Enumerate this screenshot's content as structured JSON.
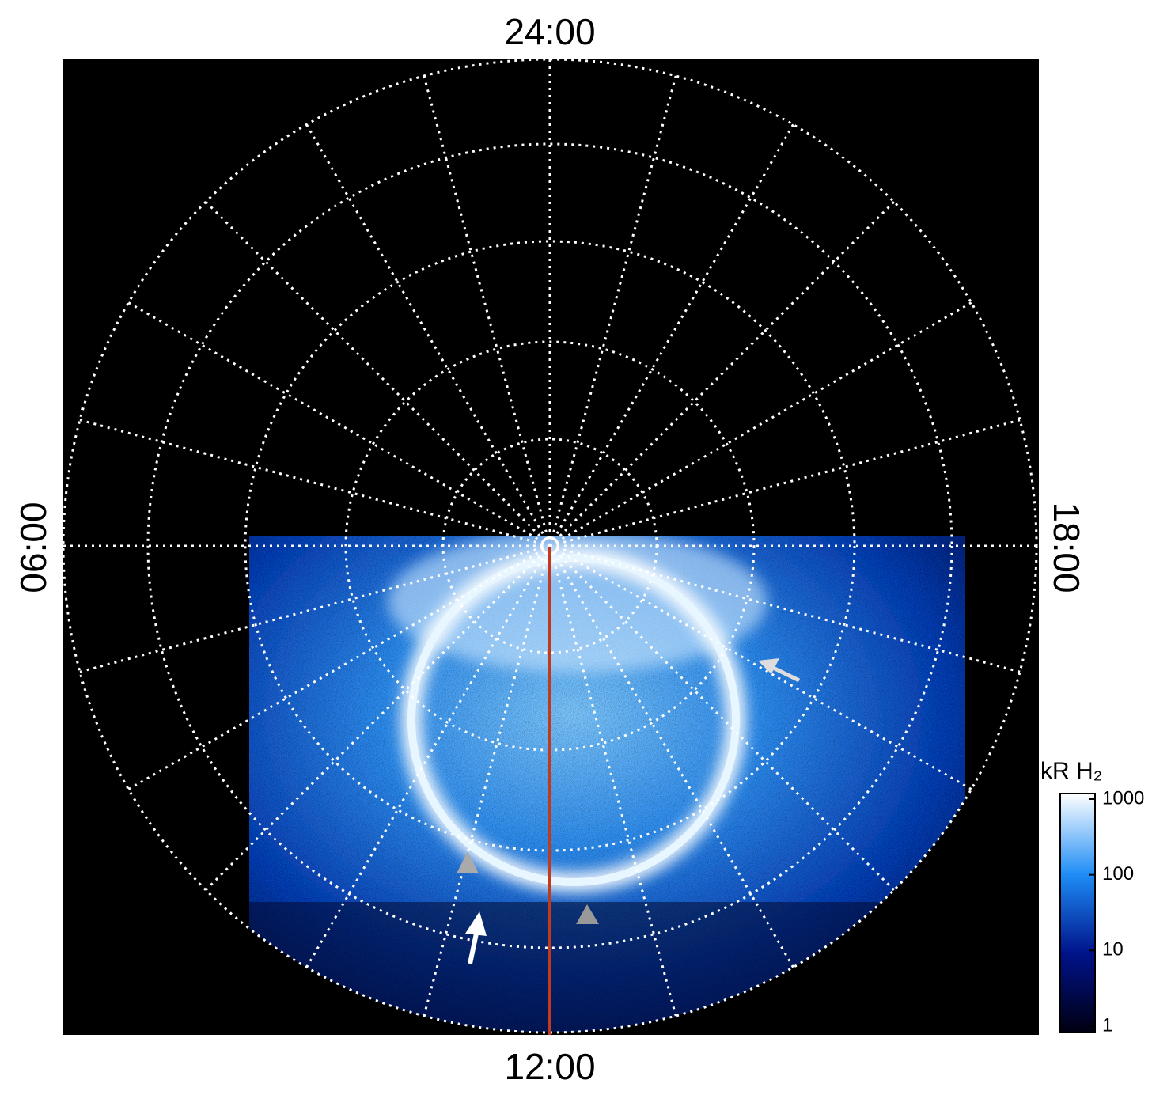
{
  "labels": {
    "top": "24:00",
    "bottom": "12:00",
    "left": "06:00",
    "right": "18:00"
  },
  "colorbar": {
    "label": "kR H₂",
    "lim": [
      1,
      1000
    ],
    "log": true,
    "ticks": [
      1,
      10,
      100,
      1000
    ]
  }
}
